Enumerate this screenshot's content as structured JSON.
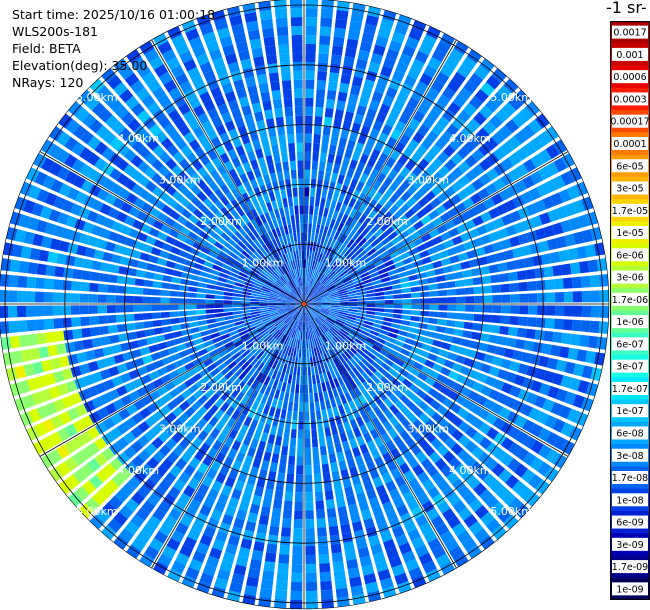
{
  "header": {
    "start_time": "Start time: 2025/10/16 01:00:18",
    "instrument": "WLS200s-181",
    "field": "Field: BETA",
    "elevation": "Elevation(deg): 35.00",
    "nrays": "NRays: 120"
  },
  "colorbar": {
    "title": "-1 sr-",
    "labels": [
      "0.0017",
      "0.001",
      "0.0006",
      "0.0003",
      "0.00017",
      "0.0001",
      "6e-05",
      "3e-05",
      "1.7e-05",
      "1e-05",
      "6e-06",
      "3e-06",
      "1.7e-06",
      "1e-06",
      "6e-07",
      "3e-07",
      "1.7e-07",
      "1e-07",
      "6e-08",
      "3e-08",
      "1.7e-08",
      "1e-08",
      "6e-09",
      "3e-09",
      "1.7e-09",
      "1e-09"
    ],
    "colors": [
      "#a80000",
      "#c80000",
      "#e60000",
      "#ff1a00",
      "#ff4a00",
      "#ff7a00",
      "#ff9c00",
      "#ffb400",
      "#ffd400",
      "#f0f000",
      "#d8ff00",
      "#b4ff3c",
      "#8cff6e",
      "#64ff96",
      "#3cffc8",
      "#14ffe6",
      "#00e6ff",
      "#00c8ff",
      "#00a8ff",
      "#0088ff",
      "#0064f0",
      "#0040e6",
      "#0020d2",
      "#0000b4",
      "#00008c",
      "#00005a"
    ]
  },
  "chart_data": {
    "type": "heatmap",
    "projection": "polar PPI",
    "field": "BETA",
    "elevation_deg": 35.0,
    "n_rays": 120,
    "range_rings_km": [
      1,
      2,
      3,
      4,
      5
    ],
    "max_range_km": 5.1,
    "ring_labels": [
      "1.00km",
      "2.00km",
      "3.00km",
      "4.00km",
      "5.00km"
    ],
    "color_scale": "log",
    "value_range": [
      1e-09,
      0.0017
    ],
    "spoke_angles_deg": [
      0,
      30,
      60,
      90,
      120,
      150,
      180,
      210,
      240,
      270,
      300,
      330
    ],
    "dominant_value": 3e-08,
    "features": [
      {
        "description": "higher backscatter",
        "azimuth_deg": [
          225,
          265
        ],
        "range_km": [
          4.0,
          5.1
        ],
        "value": 3e-06
      },
      {
        "description": "enhanced strip",
        "azimuth_deg": [
          0,
          4
        ],
        "range_km": [
          0,
          1.9
        ],
        "value": 1e-08
      }
    ]
  }
}
